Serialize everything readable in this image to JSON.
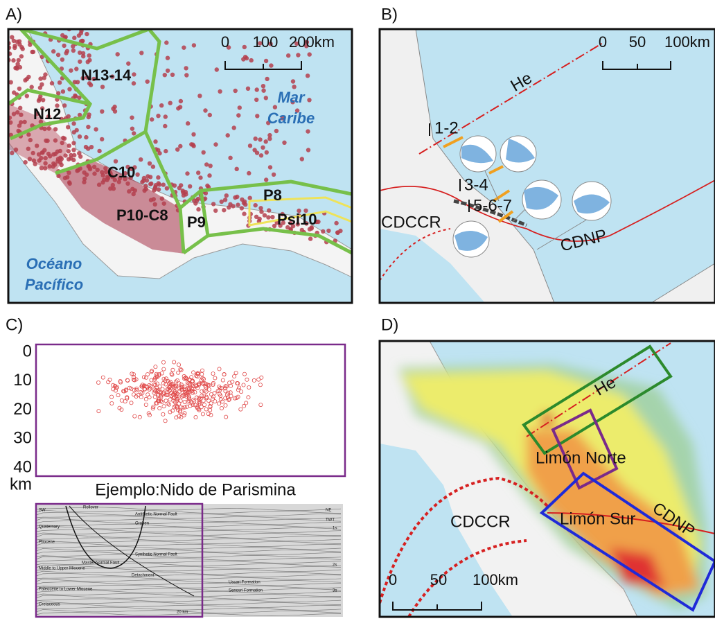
{
  "panels": [
    {
      "label": "A)",
      "scale": [
        "0",
        "100",
        "200km"
      ],
      "zones": [
        "N13-14",
        "N12",
        "C10",
        "P10-C8",
        "P9",
        "P8",
        "Psi10"
      ],
      "sea_labels": [
        "Mar",
        "Caribe",
        "Océano",
        "Pacífico"
      ]
    },
    {
      "label": "B)",
      "scale": [
        "0",
        "50",
        "100km"
      ],
      "fault": "He",
      "groups": [
        "1-2",
        "3-4",
        "5-6-7"
      ],
      "features": [
        "CDCCR",
        "CDNP"
      ]
    },
    {
      "label": "C)",
      "depth_ticks": [
        0,
        10,
        20,
        30,
        40
      ],
      "depth_unit": "km",
      "caption": "Ejemplo:Nido de Parismina",
      "section_labels": [
        "SW",
        "NE",
        "TWT",
        "1s",
        "2s",
        "3s",
        "Quaternary",
        "Pliocene",
        "Middle to Upper Miocene",
        "Paleocene to Lower Miocene",
        "Cretaceous",
        "Uscari Formation",
        "Senosri Formation",
        "20 km",
        "Rollover",
        "Antithetic Normal Fault",
        "Graben",
        "Synthetic Normal Fault",
        "Master Normal Fault",
        "Detachment"
      ]
    },
    {
      "label": "D)",
      "fault": "He",
      "zones": [
        "Limón Norte",
        "Limón Sur"
      ],
      "features": [
        "CDNP",
        "CDCCR"
      ],
      "scale": [
        "0",
        "50",
        "100km"
      ]
    }
  ]
}
